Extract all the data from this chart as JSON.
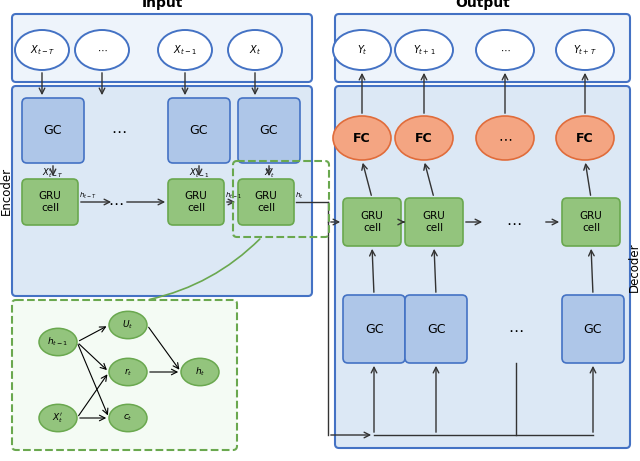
{
  "bg_color": "#ffffff",
  "blue_box_color": "#aec6e8",
  "blue_box_edge": "#4472c4",
  "green_box_color": "#93c47d",
  "green_box_edge": "#6aa84f",
  "orange_circle_color": "#f4a582",
  "orange_circle_edge": "#e06c3b",
  "white_circle_color": "#ffffff",
  "blue_circle_edge": "#4472c4",
  "encoder_label": "Encoder",
  "decoder_label": "Decoder",
  "input_label": "Input",
  "output_label": "Output"
}
